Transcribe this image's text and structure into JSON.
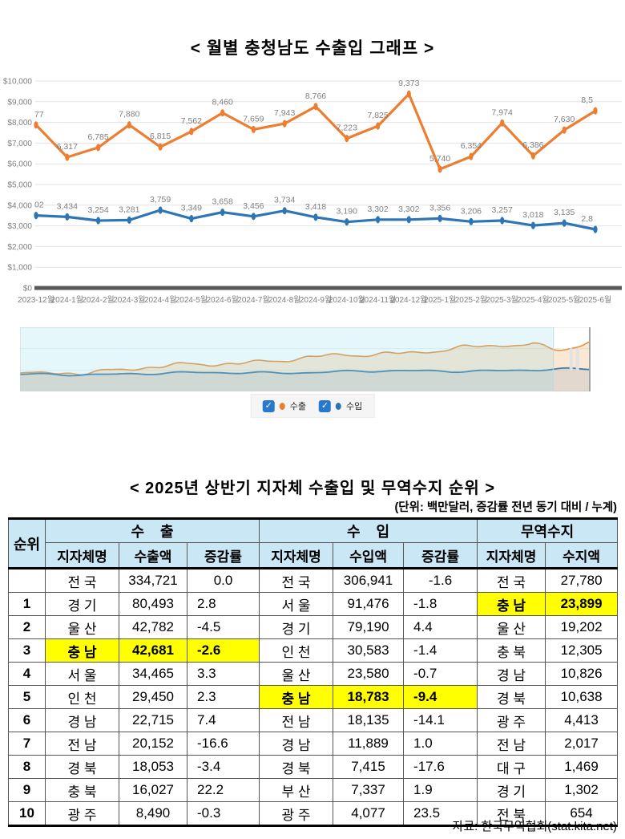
{
  "page_title": "< 월별 충청남도 수출입 그래프 >",
  "chart_data": {
    "type": "line",
    "title": "< 월별 충청남도 수출입 그래프 >",
    "categories": [
      "2023-12월",
      "2024-1월",
      "2024-2월",
      "2024-3월",
      "2024-4월",
      "2024-5월",
      "2024-6월",
      "2024-7월",
      "2024-8월",
      "2024-9월",
      "2024-10월",
      "2024-11월",
      "2024-12월",
      "2025-1월",
      "2025-2월",
      "2025-3월",
      "2025-4월",
      "2025-5월",
      "2025-6월"
    ],
    "series": [
      {
        "name": "수출",
        "color": "#ED7D31",
        "values": [
          7877,
          6317,
          6785,
          7880,
          6815,
          7562,
          8460,
          7659,
          7943,
          8766,
          7223,
          7825,
          9373,
          5740,
          6354,
          7974,
          6386,
          7630,
          8562
        ],
        "labels": [
          "77",
          "6,317",
          "6,785",
          "7,880",
          "6,815",
          "7,562",
          "8,460",
          "7,659",
          "7,943",
          "8,766",
          "7,223",
          "7,825",
          "9,373",
          "5,740",
          "6,354",
          "7,974",
          "6,386",
          "7,630",
          "8,5"
        ]
      },
      {
        "name": "수입",
        "color": "#2E75B6",
        "values": [
          3502,
          3434,
          3254,
          3281,
          3759,
          3349,
          3658,
          3456,
          3734,
          3418,
          3190,
          3302,
          3302,
          3356,
          3206,
          3257,
          3018,
          3135,
          2830
        ],
        "labels": [
          "02",
          "3,434",
          "3,254",
          "3,281",
          "3,759",
          "3,349",
          "3,658",
          "3,456",
          "3,734",
          "3,418",
          "3,190",
          "3,302",
          "3,302",
          "3,356",
          "3,206",
          "3,257",
          "3,018",
          "3,135",
          "2,8"
        ]
      }
    ],
    "ylim": [
      0,
      10000
    ],
    "y_axis_labels": [
      "$0",
      "$1,000",
      "$2,000",
      "$3,000",
      "$4,000",
      "$5,000",
      "$6,000",
      "$7,000",
      "$8,000",
      "$9,000",
      "$10,000"
    ],
    "grid": true,
    "legend_position": "bottom",
    "navigator": {
      "selected_from": 0,
      "selected_to": 0.935
    }
  },
  "legend": {
    "export_label": "수출",
    "import_label": "수입",
    "export_checked": true,
    "import_checked": true,
    "check_glyph": "✓"
  },
  "colors": {
    "export": "#ED7D31",
    "import": "#2E75B6",
    "axis_text": "#7f7f7f",
    "gridline": "#e3e3e3",
    "zero_axis": "#595959",
    "header_bg": "#C9E7F5",
    "highlight": "#FFFF00",
    "checkbox": "#2878CE"
  },
  "table": {
    "title": "< 2025년 상반기 지자체 수출입 및 무역수지 순위 >",
    "unit_note": "(단위: 백만달러, 증감률 전년 동기 대비 / 누계)",
    "header": {
      "rank": "순위",
      "export_group": "수    출",
      "import_group": "수    입",
      "balance_group": "무역수지",
      "region": "지자체명",
      "export_amount": "수출액",
      "import_amount": "수입액",
      "rate": "증감률",
      "balance_amount": "수지액"
    },
    "rows": [
      {
        "rank": "",
        "exp": [
          "전 국",
          "334,721",
          "0.0"
        ],
        "imp": [
          "전 국",
          "306,941",
          "-1.6"
        ],
        "bal": [
          "전 국",
          "27,780"
        ],
        "center_rate": true
      },
      {
        "rank": "1",
        "exp": [
          "경 기",
          "80,493",
          "2.8"
        ],
        "imp": [
          "서 울",
          "91,476",
          "-1.8"
        ],
        "bal": [
          "충 남",
          "23,899"
        ],
        "bal_hl": true
      },
      {
        "rank": "2",
        "exp": [
          "울 산",
          "42,782",
          "-4.5"
        ],
        "imp": [
          "경 기",
          "79,190",
          "4.4"
        ],
        "bal": [
          "울 산",
          "19,202"
        ]
      },
      {
        "rank": "3",
        "exp": [
          "충 남",
          "42,681",
          "-2.6"
        ],
        "exp_hl": true,
        "imp": [
          "인 천",
          "30,583",
          "-1.4"
        ],
        "bal": [
          "충 북",
          "12,305"
        ]
      },
      {
        "rank": "4",
        "exp": [
          "서 울",
          "34,465",
          "3.3"
        ],
        "imp": [
          "울 산",
          "23,580",
          "-0.7"
        ],
        "bal": [
          "경 남",
          "10,826"
        ]
      },
      {
        "rank": "5",
        "exp": [
          "인 천",
          "29,450",
          "2.3"
        ],
        "imp": [
          "충 남",
          "18,783",
          "-9.4"
        ],
        "imp_hl": true,
        "bal": [
          "경 북",
          "10,638"
        ]
      },
      {
        "rank": "6",
        "exp": [
          "경 남",
          "22,715",
          "7.4"
        ],
        "imp": [
          "전 남",
          "18,135",
          "-14.1"
        ],
        "bal": [
          "광 주",
          "4,413"
        ]
      },
      {
        "rank": "7",
        "exp": [
          "전 남",
          "20,152",
          "-16.6"
        ],
        "imp": [
          "경 남",
          "11,889",
          "1.0"
        ],
        "bal": [
          "전 남",
          "2,017"
        ]
      },
      {
        "rank": "8",
        "exp": [
          "경 북",
          "18,053",
          "-3.4"
        ],
        "imp": [
          "경 북",
          "7,415",
          "-17.6"
        ],
        "bal": [
          "대 구",
          "1,469"
        ]
      },
      {
        "rank": "9",
        "exp": [
          "충 북",
          "16,027",
          "22.2"
        ],
        "imp": [
          "부 산",
          "7,337",
          "1.9"
        ],
        "bal": [
          "경 기",
          "1,302"
        ]
      },
      {
        "rank": "10",
        "exp": [
          "광 주",
          "8,490",
          "-0.3"
        ],
        "imp": [
          "광 주",
          "4,077",
          "23.5"
        ],
        "bal": [
          "전 북",
          "654"
        ]
      }
    ],
    "source": "자료: 한국무역협회(stat.kita.net)"
  }
}
